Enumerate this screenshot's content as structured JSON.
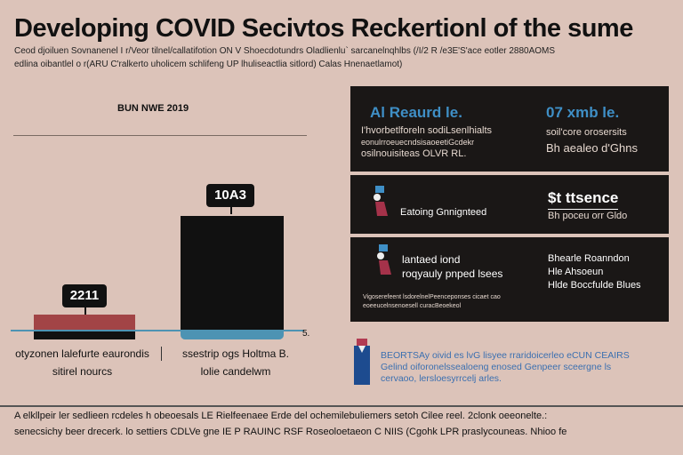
{
  "header": {
    "title": "Developing COVID Secivtos Reckertionl of the sume",
    "subtitle_lines": [
      "Ceod djoiluen Sovnanenel I r/Veor tilnel/callatifotion ON V Shoecdotundrs Oladlienlu` sarcanelnqhlbs (/I/2 R /e3E'S'ace eotler 2880AOMS",
      "edlina oibantlel o r(ARU C'ralkerto uholicem schlifeng UP lhuliseactlia sitlord) Calas Hnenaetlamot)"
    ]
  },
  "chart": {
    "period_label": "BUN NWE 2019",
    "bars": [
      {
        "value_label": "2211",
        "category": [
          "otyzonen lalefurte eaurondis",
          "sitirel nourcs"
        ],
        "level": 0.2,
        "top_color": "#a24446",
        "base_color": "#111111"
      },
      {
        "value_label": "10A3",
        "category": [
          "ssestrip ogs Holtma B.",
          "lolie candelwm"
        ],
        "level": 1.0,
        "top_color": "#111111",
        "base_color": "#4d93b3"
      }
    ],
    "axis_end_label": "5."
  },
  "panels": [
    {
      "left_title": "Al Reaurd le.",
      "left_lines": [
        "I'hvorbetlforeln sodiLsenlhialts",
        "eonulrroeuecndsisaoeetiGcdekr",
        "osilnouisiteas OLVR RL."
      ],
      "right_title": "07 xmb le.",
      "right_lines": [
        "soil'core orosersits",
        "Bh aealeo d'Ghns"
      ]
    },
    {
      "left_lines": [
        "Eatoing Gnnignteed"
      ],
      "right_title": "$t ttsence",
      "right_lines": [
        "Bh poceu orr Gldo"
      ],
      "icon": "person-icon"
    },
    {
      "left_lines": [
        "lantaed iond",
        "roqyauly pnped lsees"
      ],
      "footnote_lines": [
        "Vigoserefeent lsdorelnelPeenceponses cicaet cao",
        "eoeeucelnsenoesell curacBeoekeol"
      ],
      "right_lines": [
        "Bhearle Roanndon",
        "Hle Ahsoeun",
        "Hlde Boccfulde Blues"
      ],
      "icon": "person-icon"
    }
  ],
  "note": {
    "lines": [
      "BEORTSAy oivid es lvG lisyee rraridoicerleo eCUN CEAIRS",
      "Gelind oiforonelssealoeng enosed Genpeer sceergne ls",
      "cervaoo, lersloesyrrcelj arles."
    ]
  },
  "footer": {
    "lines": [
      "A elkllpeir ler sedlieen rcdeles h obeoesals LE Rielfeenaee Erde del ochemilebuliemers setoh Cilee reel. 2clonk oeeonelte.:",
      "senecsichy beer drecerk. lo settiers CDLVe gne IE P RAUINC RSF Roseoloetaeon C NIIS (Cgohk LPR praslycouneas. Nhioo fe"
    ],
    "highlight_color": "#c0394b"
  },
  "colors": {
    "background": "#dcc3b9",
    "panel": "#1a1716",
    "accent_blue": "#3f8fc6",
    "accent_red": "#a24446"
  }
}
